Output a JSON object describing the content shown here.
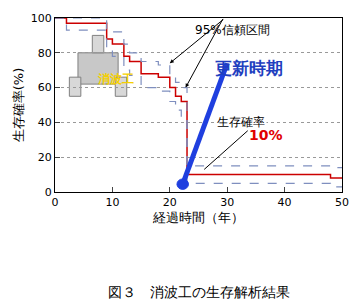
{
  "chart_data": {
    "type": "line",
    "line_style": "step",
    "title": "図３　消波工の生存解析結果",
    "x_label": "経過時間（年）",
    "y_label": "生存確率(%)",
    "x": [
      0,
      2,
      9,
      10,
      12,
      13,
      15,
      18,
      20,
      21,
      22,
      23,
      48,
      50
    ],
    "series": [
      {
        "name": "生存確率",
        "color": "#cc0000",
        "values": [
          100,
          97,
          88,
          85,
          78,
          75,
          68,
          66,
          60,
          55,
          52,
          10,
          8,
          8
        ]
      },
      {
        "name": "95%信頼区間",
        "color": "#7f8fbf",
        "line_style": "dash",
        "upper": [
          100,
          100,
          93,
          92,
          85,
          80,
          75,
          73,
          67,
          63,
          60,
          15,
          14,
          14
        ],
        "lower": [
          100,
          93,
          82,
          78,
          70,
          67,
          60,
          58,
          52,
          47,
          43,
          5,
          3,
          3
        ]
      }
    ],
    "annotations": [
      "更新時期",
      "10%",
      "消波工"
    ],
    "xlim": [
      0,
      50
    ],
    "xticks": [
      0,
      10,
      20,
      30,
      40,
      50
    ],
    "ylim": [
      0,
      100
    ],
    "yticks": [
      0,
      20,
      40,
      60,
      80,
      100
    ],
    "grid": true
  }
}
